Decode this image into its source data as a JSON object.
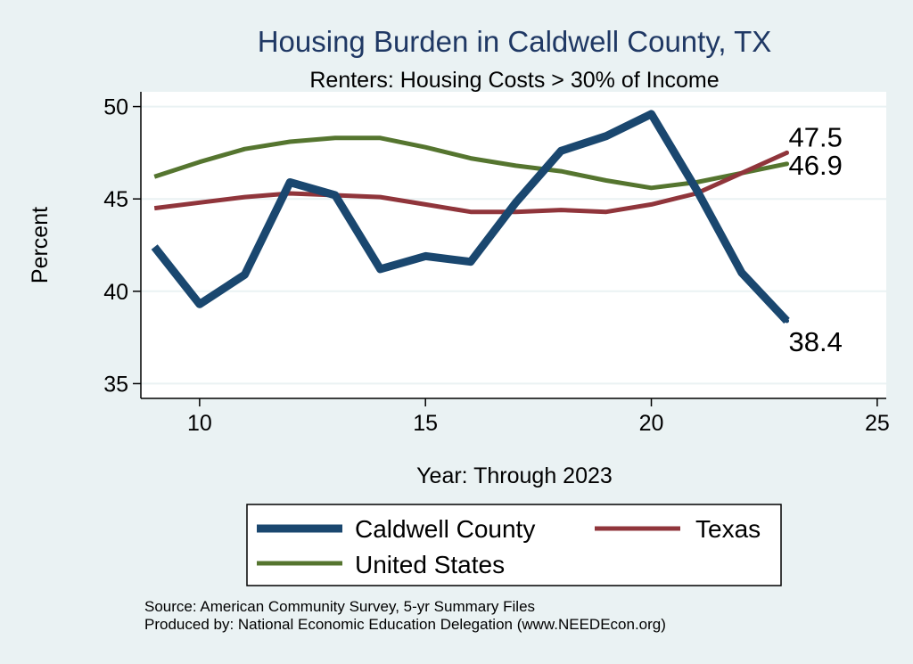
{
  "chart_data": {
    "type": "line",
    "title": "Housing Burden in Caldwell County, TX",
    "subtitle": "Renters: Housing Costs > 30% of Income",
    "xlabel": "Year: Through 2023",
    "ylabel": "Percent",
    "xlim": [
      8.7,
      25.2
    ],
    "ylim": [
      34.2,
      50.8
    ],
    "xticks": [
      10,
      15,
      20,
      25
    ],
    "yticks": [
      35,
      40,
      45,
      50
    ],
    "grid": true,
    "legend_position": "bottom",
    "series": [
      {
        "name": "Caldwell County",
        "color": "#1a476f",
        "x": [
          9,
          10,
          11,
          12,
          13,
          14,
          15,
          16,
          17,
          18,
          19,
          20,
          21,
          22,
          23
        ],
        "values": [
          42.4,
          39.3,
          40.9,
          45.9,
          45.2,
          41.2,
          41.9,
          41.6,
          44.8,
          47.6,
          48.4,
          49.6,
          45.5,
          41.0,
          38.4
        ],
        "end_label": "38.4"
      },
      {
        "name": "Texas",
        "color": "#90353b",
        "x": [
          9,
          10,
          11,
          12,
          13,
          14,
          15,
          16,
          17,
          18,
          19,
          20,
          21,
          22,
          23
        ],
        "values": [
          44.5,
          44.8,
          45.1,
          45.3,
          45.2,
          45.1,
          44.7,
          44.3,
          44.3,
          44.4,
          44.3,
          44.7,
          45.3,
          46.4,
          47.5
        ],
        "end_label": "47.5"
      },
      {
        "name": "United States",
        "color": "#55752f",
        "x": [
          9,
          10,
          11,
          12,
          13,
          14,
          15,
          16,
          17,
          18,
          19,
          20,
          21,
          22,
          23
        ],
        "values": [
          46.2,
          47.0,
          47.7,
          48.1,
          48.3,
          48.3,
          47.8,
          47.2,
          46.8,
          46.5,
          46.0,
          45.6,
          45.9,
          46.4,
          46.9
        ],
        "end_label": "46.9"
      }
    ]
  },
  "notes": {
    "source": "Source: American Community Survey, 5-yr Summary Files",
    "produced_by": "Produced by: National Economic Education Delegation (www.NEEDEcon.org)"
  }
}
